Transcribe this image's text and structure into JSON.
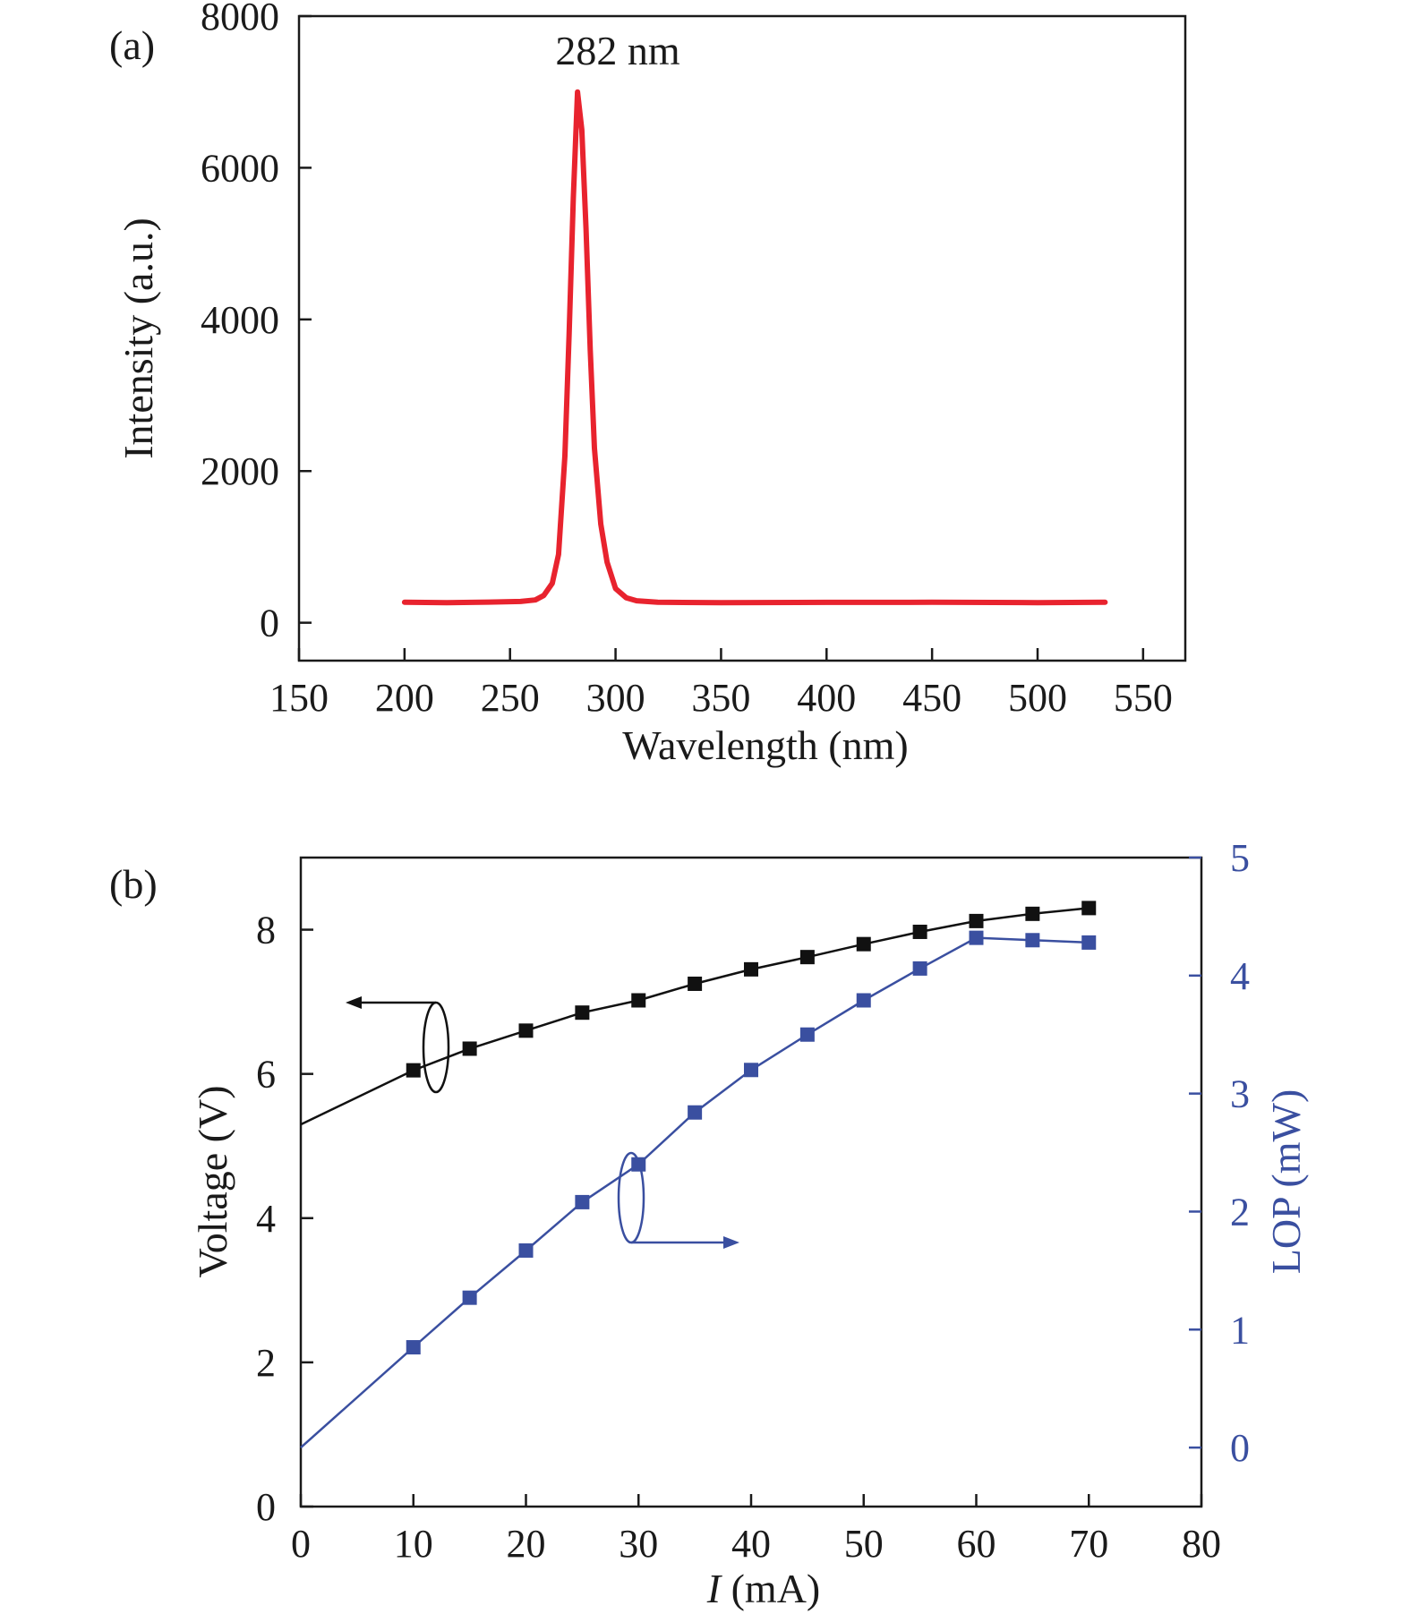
{
  "chart_data": [
    {
      "type": "line",
      "panel_label": "(a)",
      "xlabel": "Wavelength (nm)",
      "ylabel": "Intensity (a.u.)",
      "xlim": [
        150,
        570
      ],
      "ylim": [
        -500,
        8000
      ],
      "xticks": [
        150,
        200,
        250,
        300,
        350,
        400,
        450,
        500,
        550
      ],
      "yticks": [
        0,
        2000,
        4000,
        6000,
        8000
      ],
      "annotation": "282 nm",
      "series": [
        {
          "color": "#e8232e",
          "peak_wavelength": 282,
          "peak_intensity": 7000,
          "baseline": 270,
          "x": [
            200,
            220,
            240,
            255,
            262,
            266,
            270,
            273,
            276,
            278,
            280,
            282,
            284,
            286,
            288,
            290,
            293,
            296,
            300,
            305,
            310,
            320,
            350,
            400,
            450,
            500,
            532
          ],
          "values": [
            270,
            265,
            272,
            280,
            300,
            360,
            520,
            900,
            2200,
            3800,
            5600,
            7000,
            6500,
            5200,
            3600,
            2300,
            1300,
            800,
            450,
            330,
            290,
            270,
            265,
            268,
            270,
            265,
            270
          ]
        }
      ]
    },
    {
      "type": "line",
      "panel_label": "(b)",
      "xlabel_italic": "I",
      "xlabel_rest": " (mA)",
      "ylabel": "Voltage (V)",
      "y2label": "LOP (mW)",
      "xlim": [
        0,
        80
      ],
      "ylim": [
        0,
        9
      ],
      "y2lim": [
        -0.5,
        5
      ],
      "xticks": [
        0,
        10,
        20,
        30,
        40,
        50,
        60,
        70,
        80
      ],
      "yticks": [
        0,
        2,
        4,
        6,
        8
      ],
      "y2ticks": [
        0,
        1,
        2,
        3,
        4,
        5
      ],
      "series": [
        {
          "axis": "left",
          "color": "#111111",
          "x": [
            0,
            10,
            15,
            20,
            25,
            30,
            35,
            40,
            45,
            50,
            55,
            60,
            65,
            70
          ],
          "values": [
            5.3,
            6.05,
            6.35,
            6.6,
            6.85,
            7.02,
            7.25,
            7.45,
            7.62,
            7.8,
            7.97,
            8.12,
            8.22,
            8.3
          ]
        },
        {
          "axis": "right",
          "color": "#3a4fa0",
          "x": [
            0,
            10,
            15,
            20,
            25,
            30,
            35,
            40,
            45,
            50,
            55,
            60,
            65,
            70
          ],
          "values": [
            0.0,
            0.85,
            1.27,
            1.67,
            2.08,
            2.4,
            2.84,
            3.2,
            3.5,
            3.79,
            4.06,
            4.32,
            4.3,
            4.28
          ]
        }
      ]
    }
  ]
}
